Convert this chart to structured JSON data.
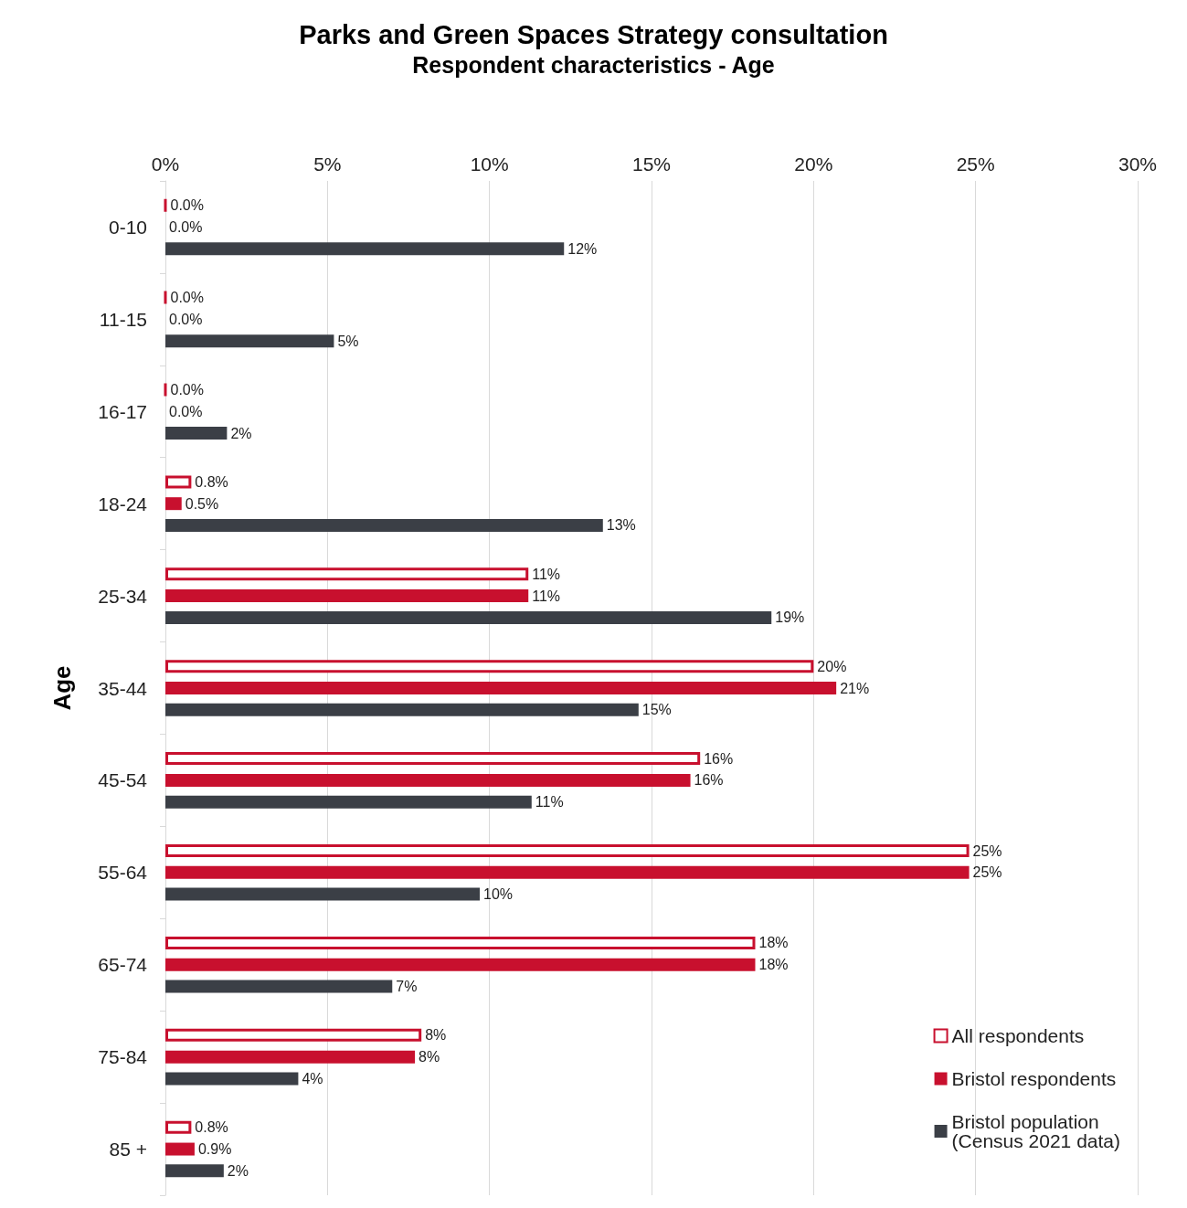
{
  "chart_data": {
    "type": "bar",
    "orientation": "horizontal",
    "title": "Parks and Green Spaces Strategy consultation",
    "subtitle": "Respondent characteristics - Age",
    "ylabel": "Age",
    "categories": [
      "0-10",
      "11-15",
      "16-17",
      "18-24",
      "25-34",
      "35-44",
      "45-54",
      "55-64",
      "65-74",
      "75-84",
      "85 +"
    ],
    "xlim": [
      0,
      30
    ],
    "xticks": [
      {
        "value": 0,
        "label": "0%"
      },
      {
        "value": 5,
        "label": "5%"
      },
      {
        "value": 10,
        "label": "10%"
      },
      {
        "value": 15,
        "label": "15%"
      },
      {
        "value": 20,
        "label": "20%"
      },
      {
        "value": 25,
        "label": "25%"
      },
      {
        "value": 30,
        "label": "30%"
      }
    ],
    "grid": "x",
    "legend": "bottom right",
    "series": [
      {
        "name": "All respondents",
        "color": "#c8102e",
        "values": [
          0,
          0,
          0,
          0.8,
          11.2,
          20,
          16.5,
          24.8,
          18.2,
          7.9,
          0.8
        ],
        "value_labels": [
          "0.0%",
          "0.0%",
          "0.0%",
          "0.8%",
          "11%",
          "20%",
          "16%",
          "25%",
          "18%",
          "8%",
          "0.8%"
        ]
      },
      {
        "name": "Bristol respondents",
        "color": "#c8102e",
        "values": [
          0,
          0,
          0,
          0.5,
          11.2,
          20.7,
          16.2,
          24.8,
          18.2,
          7.7,
          0.9
        ],
        "value_labels": [
          "0.0%",
          "0.0%",
          "0.0%",
          "0.5%",
          "11%",
          "21%",
          "16%",
          "25%",
          "18%",
          "8%",
          "0.9%"
        ]
      },
      {
        "name": "Bristol population\n(Census 2021 data)",
        "color": "#3b3f46",
        "values": [
          12.3,
          5.2,
          1.9,
          13.5,
          18.7,
          14.6,
          11.3,
          9.7,
          7.0,
          4.1,
          1.8
        ],
        "value_labels": [
          "12%",
          "5%",
          "2%",
          "13%",
          "19%",
          "15%",
          "11%",
          "10%",
          "7%",
          "4%",
          "2%"
        ]
      }
    ]
  }
}
